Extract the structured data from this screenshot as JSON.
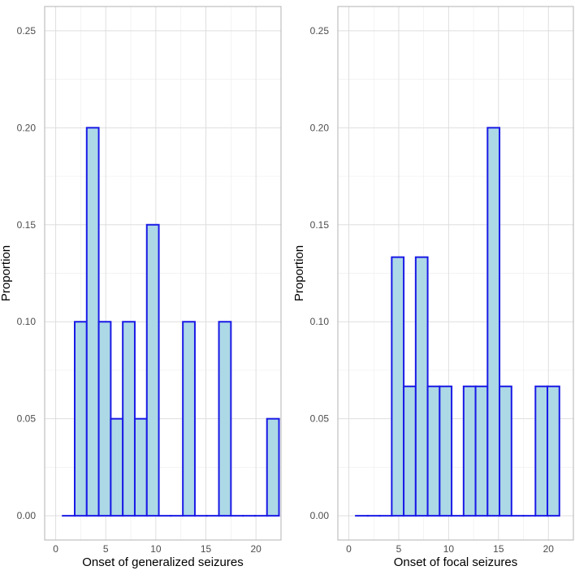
{
  "chart_data": [
    {
      "type": "bar",
      "name": "generalized",
      "xlabel": "Onset of generalized seizures",
      "ylabel": "Proportion",
      "xlim": [
        -1.1,
        22.5
      ],
      "ylim": [
        -0.0125,
        0.2625
      ],
      "x_ticks": [
        0,
        5,
        10,
        15,
        20
      ],
      "y_ticks": [
        0.0,
        0.05,
        0.1,
        0.15,
        0.2,
        0.25
      ],
      "x_tick_labels": [
        "0",
        "5",
        "10",
        "15",
        "20"
      ],
      "y_tick_labels": [
        "0.00",
        "0.05",
        "0.10",
        "0.15",
        "0.20",
        "0.25"
      ],
      "bin_width": 1.2,
      "bin_starts": [
        0.7,
        1.9,
        3.1,
        4.3,
        5.5,
        6.7,
        7.9,
        9.1,
        10.3,
        11.5,
        12.7,
        13.9,
        15.1,
        16.3,
        17.5,
        18.7,
        19.9,
        21.1
      ],
      "values": [
        0,
        0.1,
        0.2,
        0.1,
        0.05,
        0.1,
        0.05,
        0.15,
        0,
        0,
        0.1,
        0,
        0,
        0.1,
        0,
        0,
        0,
        0.05
      ],
      "fill": "#add8e6",
      "stroke": "#1a1ae6"
    },
    {
      "type": "bar",
      "name": "focal",
      "xlabel": "Onset of focal seizures",
      "ylabel": "Proportion",
      "xlim": [
        -1.1,
        22.5
      ],
      "ylim": [
        -0.0125,
        0.2625
      ],
      "x_ticks": [
        0,
        5,
        10,
        15,
        20
      ],
      "y_ticks": [
        0.0,
        0.05,
        0.1,
        0.15,
        0.2,
        0.25
      ],
      "x_tick_labels": [
        "0",
        "5",
        "10",
        "15",
        "20"
      ],
      "y_tick_labels": [
        "0.00",
        "0.05",
        "0.10",
        "0.15",
        "0.20",
        "0.25"
      ],
      "bin_width": 1.2,
      "bin_starts": [
        0.7,
        1.9,
        3.1,
        4.3,
        5.5,
        6.7,
        7.9,
        9.1,
        10.3,
        11.5,
        12.7,
        13.9,
        15.1,
        16.3,
        17.5,
        18.7,
        19.9
      ],
      "values": [
        0,
        0,
        0,
        0.1333,
        0.0667,
        0.1333,
        0.0667,
        0.0667,
        0,
        0.0667,
        0.0667,
        0.2,
        0.0667,
        0,
        0,
        0.0667,
        0.0667
      ],
      "fill": "#add8e6",
      "stroke": "#1a1ae6"
    }
  ]
}
